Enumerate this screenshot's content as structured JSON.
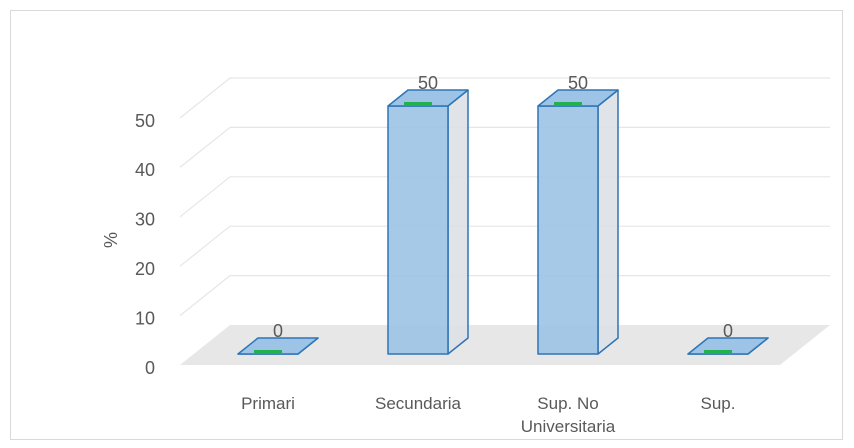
{
  "chart_data": {
    "type": "bar3d",
    "y_label": "%",
    "categories": [
      "Primari",
      "Secundaria",
      "Sup. No Universitaria",
      "Sup."
    ],
    "values": [
      0,
      50,
      50,
      0
    ],
    "color": "#9dc3e6",
    "ylim": [
      0,
      60
    ],
    "yticks": [
      0,
      10,
      20,
      30,
      40,
      50
    ],
    "grid": true
  }
}
